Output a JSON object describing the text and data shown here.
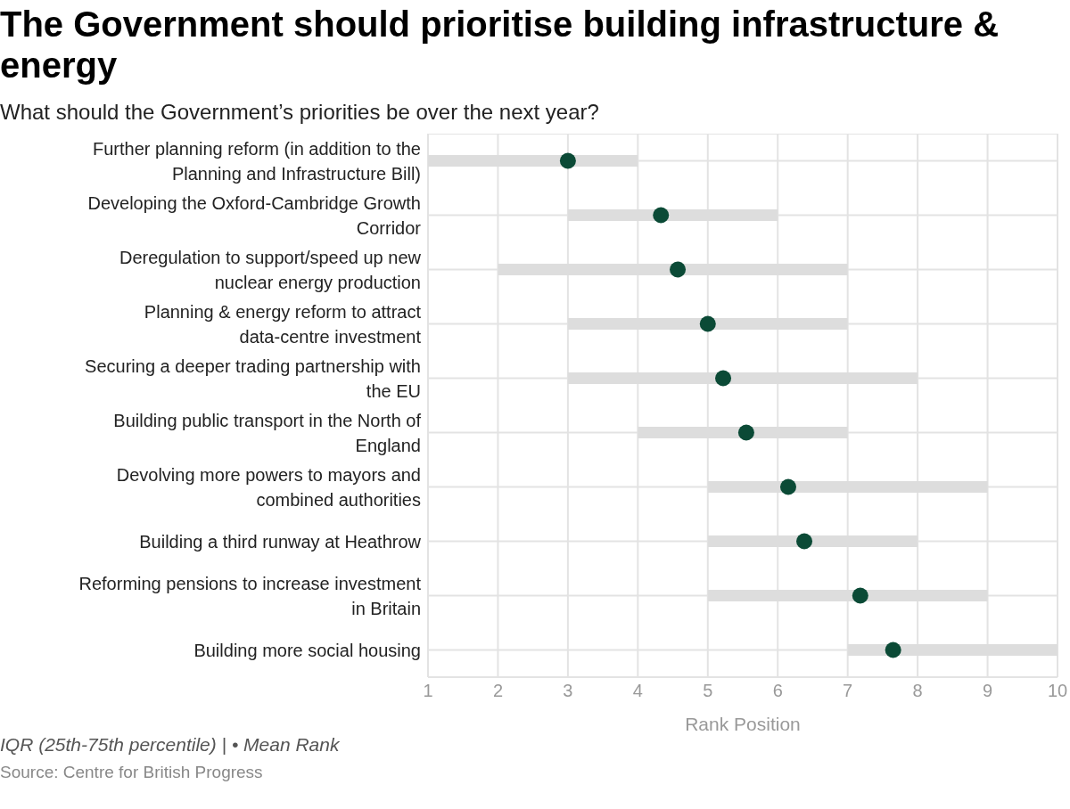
{
  "chart_data": {
    "type": "bar",
    "orientation": "horizontal",
    "title": "The Government should prioritise building infrastructure & energy",
    "subtitle": "What should the Government’s priorities be over the next year?",
    "xlabel": "Rank Position",
    "categories": [
      "Further planning reform (in addition to the Planning and Infrastructure Bill)",
      "Developing the Oxford-Cambridge Growth Corridor",
      "Deregulation to support/speed up new nuclear energy production",
      "Planning & energy reform to attract data-centre investment",
      "Securing a deeper trading partnership with the EU",
      "Building public transport in the North of England",
      "Devolving more powers to mayors and combined authorities",
      "Building a third runway at Heathrow",
      "Reforming pensions to increase investment in Britain",
      "Building more social housing"
    ],
    "series": [
      {
        "type": "bar",
        "color": "#dddddd",
        "base": [
          1,
          3,
          2,
          3,
          3,
          4,
          5,
          5,
          5,
          7
        ],
        "values": [
          3,
          3,
          5,
          4,
          5,
          3,
          4,
          3,
          4,
          3
        ]
      },
      {
        "type": "scatter",
        "color": "#0b4a36",
        "x": [
          "Further planning reform (in addition to the Planning and Infrastructure Bill)",
          "Developing the Oxford-Cambridge Growth Corridor",
          "Deregulation to support/speed up new nuclear energy production",
          "Planning & energy reform to attract data-centre investment",
          "Securing a deeper trading partnership with the EU",
          "Building public transport in the North of England",
          "Devolving more powers to mayors and combined authorities",
          "Building a third runway at Heathrow",
          "Reforming pensions to increase investment in Britain",
          "Building more social housing"
        ],
        "values": [
          3.0,
          4.33,
          4.57,
          5.0,
          5.22,
          5.55,
          6.15,
          6.38,
          7.18,
          7.65
        ]
      }
    ],
    "xlim": [
      1,
      10
    ],
    "xticks": [
      1,
      2,
      3,
      4,
      5,
      6,
      7,
      8,
      9,
      10
    ],
    "grid": true,
    "marker": "circle",
    "legend": false,
    "annotations": [
      "IQR (25th-75th percentile) | • Mean Rank",
      "Source: Centre for British Progress"
    ]
  }
}
